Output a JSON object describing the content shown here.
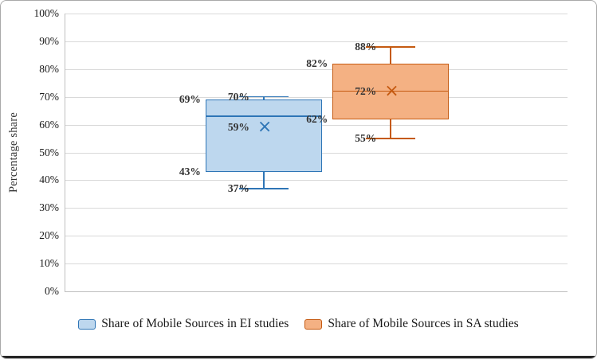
{
  "chart_data": {
    "type": "box",
    "title": "",
    "xlabel": "",
    "ylabel": "Percentage share",
    "ylim": [
      0,
      100
    ],
    "grid": true,
    "legend_position": "bottom",
    "axis_color": "#bfbfbf",
    "grid_color": "#d9d9d9",
    "yticks": [
      {
        "label": "0%",
        "value": 0
      },
      {
        "label": "10%",
        "value": 10
      },
      {
        "label": "20%",
        "value": 20
      },
      {
        "label": "30%",
        "value": 30
      },
      {
        "label": "40%",
        "value": 40
      },
      {
        "label": "50%",
        "value": 50
      },
      {
        "label": "60%",
        "value": 60
      },
      {
        "label": "70%",
        "value": 70
      },
      {
        "label": "80%",
        "value": 80
      },
      {
        "label": "90%",
        "value": 90
      },
      {
        "label": "100%",
        "value": 100
      }
    ],
    "series": [
      {
        "name": "Share of Mobile Sources in EI studies",
        "min": 37,
        "q1": 43,
        "median": 63,
        "q3": 69,
        "max": 70,
        "mean": 59,
        "fill": "#BDD7EE",
        "stroke": "#2E75B6",
        "mean_color": "#2E75B6",
        "labels": [
          {
            "text": "70%",
            "value": 70,
            "anchor": "marker-left"
          },
          {
            "text": "69%",
            "value": 69,
            "anchor": "box-left"
          },
          {
            "text": "59%",
            "value": 59,
            "anchor": "marker-left"
          },
          {
            "text": "43%",
            "value": 43,
            "anchor": "box-left"
          },
          {
            "text": "37%",
            "value": 37,
            "anchor": "marker-left"
          }
        ]
      },
      {
        "name": "Share of Mobile Sources in SA studies",
        "min": 55,
        "q1": 62,
        "median": 72,
        "q3": 82,
        "max": 88,
        "mean": 72,
        "fill": "#F4B183",
        "stroke": "#C55A11",
        "mean_color": "#C55A11",
        "labels": [
          {
            "text": "88%",
            "value": 88,
            "anchor": "marker-left"
          },
          {
            "text": "82%",
            "value": 82,
            "anchor": "box-left"
          },
          {
            "text": "72%",
            "value": 72,
            "anchor": "marker-left"
          },
          {
            "text": "62%",
            "value": 62,
            "anchor": "box-left"
          },
          {
            "text": "55%",
            "value": 55,
            "anchor": "marker-left"
          }
        ]
      }
    ]
  }
}
